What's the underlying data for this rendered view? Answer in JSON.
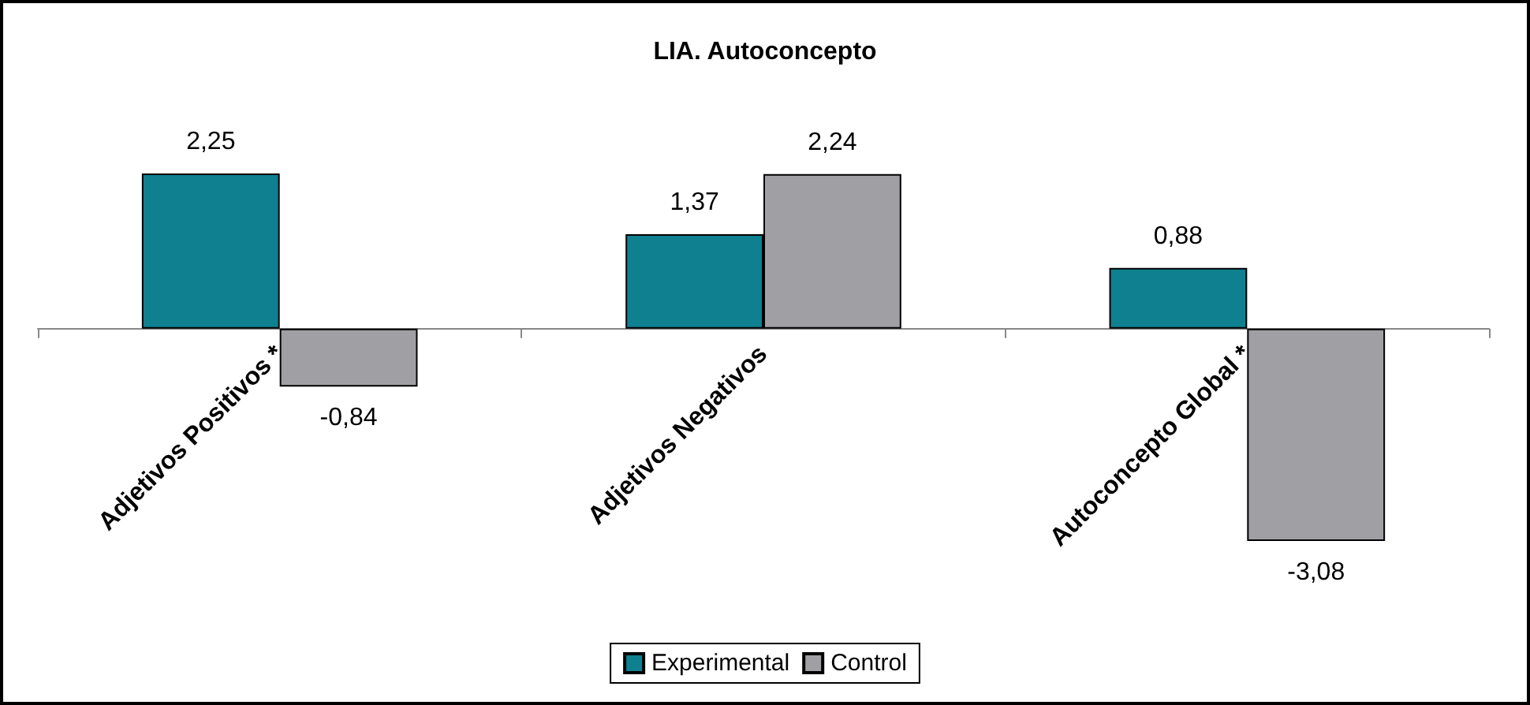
{
  "chart_data": {
    "type": "bar",
    "title": "LIA. Autoconcepto",
    "categories": [
      "Adjetivos Positivos *",
      "Adjetivos Negativos",
      "Autoconcepto Global *"
    ],
    "series": [
      {
        "name": "Experimental",
        "color": "#0f8090",
        "values": [
          2.25,
          1.37,
          0.88
        ],
        "value_labels": [
          "2,25",
          "1,37",
          "0,88"
        ]
      },
      {
        "name": "Control",
        "color": "#a0a0a4",
        "values": [
          -0.84,
          2.24,
          -3.08
        ],
        "value_labels": [
          "-0,84",
          "2,24",
          "-3,08"
        ]
      }
    ],
    "legend": "bottom"
  }
}
